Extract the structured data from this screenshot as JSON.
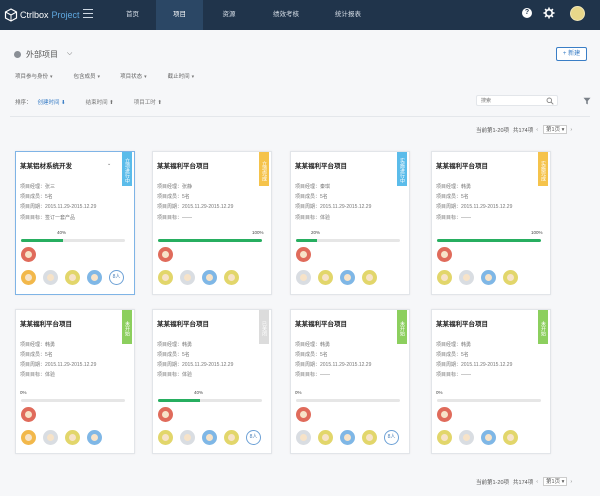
{
  "app": {
    "brand": "Ctrlbox",
    "product": "Project"
  },
  "nav": {
    "items": [
      "首页",
      "项目",
      "资源",
      "绩效考核",
      "统计报表"
    ],
    "active": "项目"
  },
  "header": {
    "title": "外部项目",
    "new_button": "+ 新建"
  },
  "filters": [
    "项目参与身份",
    "包含成员",
    "项目状态",
    "截止时间"
  ],
  "sort": {
    "label": "排序：",
    "options": [
      "创建时间 ⬇",
      "结束时间 ⬆",
      "项目工时 ⬆"
    ],
    "active": 0
  },
  "search": {
    "placeholder": "搜索"
  },
  "pager": {
    "range": "当前第1-20项",
    "total": "共174项",
    "page": "第1页"
  },
  "cards": [
    {
      "title": "某某铝材系统开发",
      "manager": "项目经理：张三",
      "members": "项目成员：5名",
      "period": "项目周期：2015.11.29-2015.12.29",
      "target": "项目目标：签订一套产品",
      "ribbon": "立项进行中",
      "ribbon_color": "#5bbcea",
      "progress_label": "40%",
      "progress": 0.4,
      "extra": "8人",
      "selected": true
    },
    {
      "title": "某某福利平台项目",
      "manager": "项目经理：张静",
      "members": "项目成员：5名",
      "period": "项目周期：2015.11.29-2015.12.29",
      "target": "项目目标：——",
      "ribbon": "立项完成",
      "ribbon_color": "#f5c34b",
      "progress_label": "100%",
      "progress": 1.0,
      "extra": "",
      "selected": false
    },
    {
      "title": "某某福利平台项目",
      "manager": "项目经理：秦琪",
      "members": "项目成员：5名",
      "period": "项目周期：2015.11.29-2015.12.29",
      "target": "项目目标：体验",
      "ribbon": "实施进行中",
      "ribbon_color": "#5bbcea",
      "progress_label": "20%",
      "progress": 0.2,
      "extra": "",
      "selected": false
    },
    {
      "title": "某某福利平台项目",
      "manager": "项目经理：韩勇",
      "members": "项目成员：5名",
      "period": "项目周期：2015.11.29-2015.12.29",
      "target": "项目目标：——",
      "ribbon": "实施完成",
      "ribbon_color": "#f5c34b",
      "progress_label": "100%",
      "progress": 1.0,
      "extra": "",
      "selected": false
    },
    {
      "title": "某某福利平台项目",
      "manager": "项目经理：韩勇",
      "members": "项目成员：5名",
      "period": "项目周期：2015.11.29-2015.12.29",
      "target": "项目目标：体验",
      "ribbon": "未开始",
      "ribbon_color": "#8ccf5e",
      "progress_label": "0%",
      "progress": 0.0,
      "extra": "",
      "selected": false
    },
    {
      "title": "某某福利平台项目",
      "manager": "项目经理：韩勇",
      "members": "项目成员：5名",
      "period": "项目周期：2015.11.29-2015.12.29",
      "target": "项目目标：体验",
      "ribbon": "已关闭",
      "ribbon_color": "#dcdcdc",
      "progress_label": "40%",
      "progress": 0.4,
      "extra": "8人",
      "selected": false
    },
    {
      "title": "某某福利平台项目",
      "manager": "项目经理：韩勇",
      "members": "项目成员：5名",
      "period": "项目周期：2015.11.29-2015.12.29",
      "target": "项目目标：——",
      "ribbon": "未开始",
      "ribbon_color": "#8ccf5e",
      "progress_label": "0%",
      "progress": 0.0,
      "extra": "8人",
      "selected": false
    },
    {
      "title": "某某福利平台项目",
      "manager": "项目经理：韩勇",
      "members": "项目成员：5名",
      "period": "项目周期：2015.11.29-2015.12.29",
      "target": "项目目标：——",
      "ribbon": "未开始",
      "ribbon_color": "#8ccf5e",
      "progress_label": "0%",
      "progress": 0.0,
      "extra": "",
      "selected": false
    }
  ],
  "colors": {
    "topbar": "#20344b",
    "accent": "#3a7ec6",
    "progress": "#27ae60"
  }
}
